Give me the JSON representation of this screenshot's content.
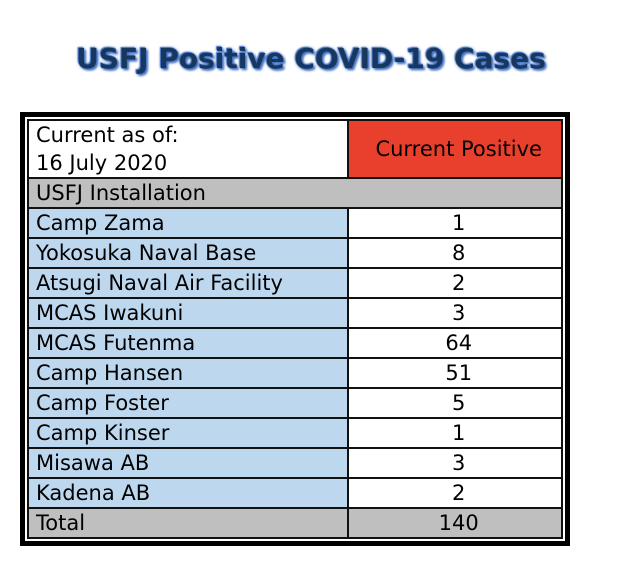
{
  "title": "USFJ Positive COVID-19 Cases",
  "table": {
    "header": {
      "date_label_line1": "Current as of:",
      "date_label_line2": "16 July 2020",
      "count_column_label": "Current Positive"
    },
    "section_label": "USFJ Installation"
  },
  "chart_data": {
    "type": "table",
    "title": "USFJ Positive COVID-19 Cases",
    "as_of_date": "16 July 2020",
    "columns": [
      "USFJ Installation",
      "Current Positive"
    ],
    "rows": [
      {
        "installation": "Camp Zama",
        "positive": "1"
      },
      {
        "installation": "Yokosuka Naval Base",
        "positive": "8"
      },
      {
        "installation": "Atsugi Naval Air Facility",
        "positive": "2"
      },
      {
        "installation": "MCAS Iwakuni",
        "positive": "3"
      },
      {
        "installation": "MCAS Futenma",
        "positive": "64"
      },
      {
        "installation": "Camp Hansen",
        "positive": "51"
      },
      {
        "installation": "Camp Foster",
        "positive": "5"
      },
      {
        "installation": "Camp Kinser",
        "positive": "1"
      },
      {
        "installation": "Misawa AB",
        "positive": "3"
      },
      {
        "installation": "Kadena AB",
        "positive": "2"
      }
    ],
    "total": {
      "label": "Total",
      "value": "140"
    }
  },
  "colors": {
    "header_red": "#E8402C",
    "row_blue": "#BDD7EE",
    "section_gray": "#BFBFBF",
    "title_navy": "#17375E",
    "title_glow": "#4472C4"
  }
}
